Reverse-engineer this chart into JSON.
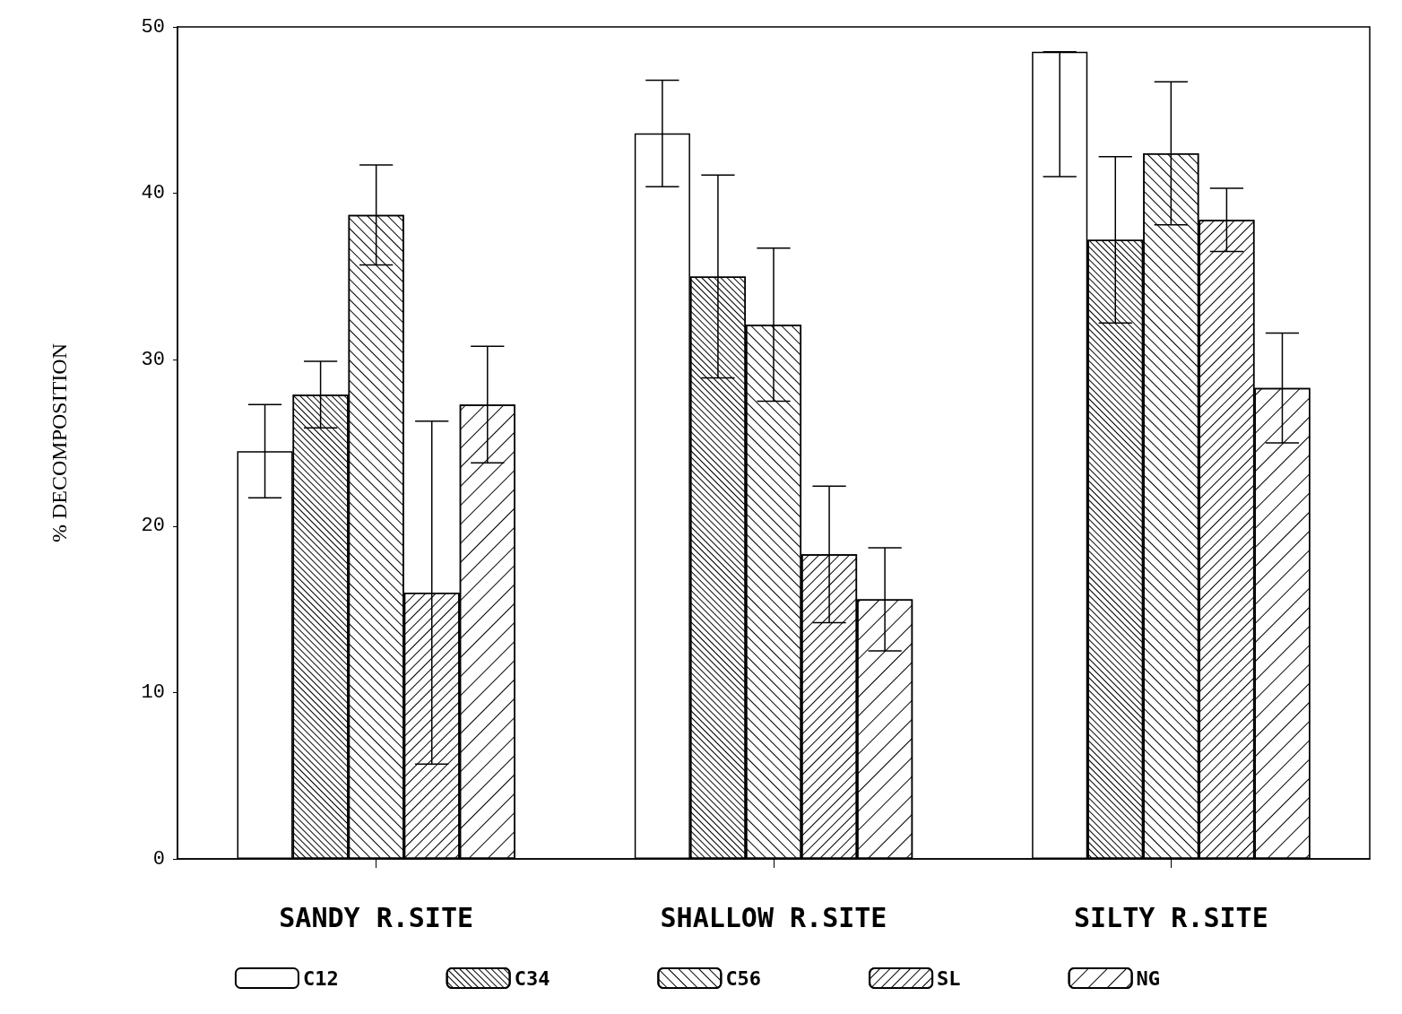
{
  "chart_data": {
    "type": "bar",
    "ylabel": "% DECOMPOSITION",
    "categories": [
      "SANDY R.SITE",
      "SHALLOW R.SITE",
      "SILTY R.SITE"
    ],
    "series": [
      {
        "name": "C12",
        "color": "#ffffff",
        "values": [
          24.5,
          43.6,
          48.5
        ],
        "errors": [
          2.8,
          3.2,
          [
            41.0,
            48.5
          ]
        ]
      },
      {
        "name": "C34",
        "color": "#ffffff",
        "values": [
          27.9,
          35.0,
          37.2
        ],
        "errors": [
          2.0,
          6.1,
          5.0
        ]
      },
      {
        "name": "C56",
        "color": "#ffffff",
        "values": [
          38.7,
          32.1,
          42.4
        ],
        "errors": [
          3.0,
          4.6,
          4.3
        ]
      },
      {
        "name": "SL",
        "color": "#ffffff",
        "values": [
          16.0,
          18.3,
          38.4
        ],
        "errors": [
          10.3,
          4.1,
          1.9
        ]
      },
      {
        "name": "NG",
        "color": "#ffffff",
        "values": [
          27.3,
          15.6,
          28.3
        ],
        "errors": [
          3.5,
          3.1,
          3.3
        ]
      }
    ],
    "ylim": [
      0,
      50
    ],
    "yticks": [
      0,
      10,
      20,
      30,
      40,
      50
    ],
    "grid": false,
    "legend": "bottom"
  }
}
